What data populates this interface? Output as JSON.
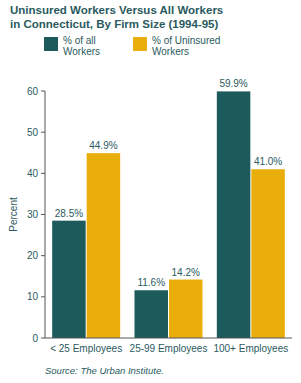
{
  "chart_data": {
    "type": "bar",
    "title": "Uninsured Workers Versus All Workers in Connecticut, By Firm Size (1994-95)",
    "y_label": "Percent",
    "categories": [
      "< 25 Employees",
      "25-99 Employees",
      "100+ Employees"
    ],
    "series": [
      {
        "name": "% of all Workers",
        "color": "#1d5a5c",
        "values": [
          28.5,
          11.6,
          59.9
        ],
        "value_labels": [
          "28.5%",
          "11.6%",
          "59.9%"
        ]
      },
      {
        "name": "% of Uninsured Workers",
        "color": "#e9ad0c",
        "values": [
          44.9,
          14.2,
          41.0
        ],
        "value_labels": [
          "44.9%",
          "14.2%",
          "41.0%"
        ]
      }
    ],
    "ylim": [
      0,
      60
    ],
    "yticks": [
      0,
      10,
      20,
      30,
      40,
      50,
      60
    ],
    "grid": false,
    "data_labels": true,
    "legend": "top-left",
    "source": "Source: The Urban Institute."
  }
}
